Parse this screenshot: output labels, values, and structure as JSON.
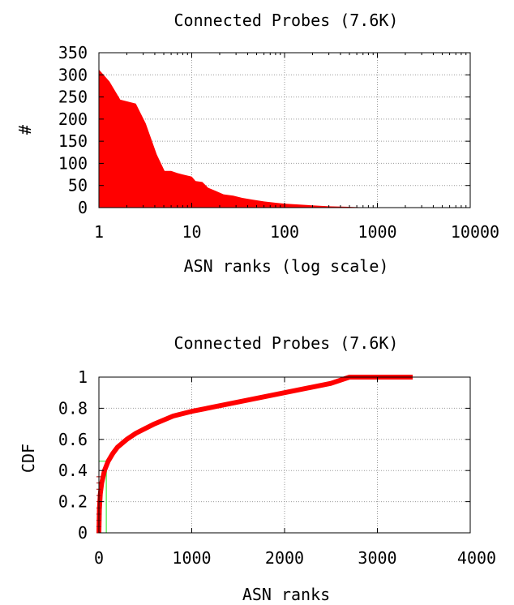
{
  "chart_data": [
    {
      "type": "area",
      "title": "Connected Probes (7.6K)",
      "xlabel": "ASN ranks (log scale)",
      "ylabel": "#",
      "x_scale": "log",
      "xlim": [
        1,
        10000
      ],
      "ylim": [
        0,
        350
      ],
      "x_ticks": [
        1,
        10,
        100,
        1000,
        10000
      ],
      "x_tick_labels": [
        "1",
        "10",
        "100",
        "1000",
        "10000"
      ],
      "y_ticks": [
        0,
        50,
        100,
        150,
        200,
        250,
        300,
        350
      ],
      "y_tick_labels": [
        "0",
        "50",
        "100",
        "150",
        "200",
        "250",
        "300",
        "350"
      ],
      "grid": true,
      "fill_color": "#ff0000",
      "series": [
        {
          "x": [
            1,
            1.3,
            1.7,
            2.5,
            3.2,
            4.2,
            5.1,
            6,
            7,
            8,
            10,
            11,
            13,
            15,
            18,
            22,
            28,
            35,
            45,
            60,
            80,
            100,
            140,
            200,
            300,
            450,
            650,
            800
          ],
          "y": [
            312,
            285,
            244,
            235,
            190,
            120,
            83,
            83,
            78,
            75,
            70,
            60,
            58,
            45,
            38,
            30,
            27,
            22,
            18,
            14,
            11,
            9,
            7,
            5,
            3,
            2,
            1,
            0
          ]
        }
      ]
    },
    {
      "type": "line",
      "title": "Connected Probes (7.6K)",
      "xlabel": "ASN ranks",
      "ylabel": "CDF",
      "xlim": [
        0,
        4000
      ],
      "ylim": [
        0,
        1
      ],
      "x_ticks": [
        0,
        1000,
        2000,
        3000,
        4000
      ],
      "x_tick_labels": [
        "0",
        "1000",
        "2000",
        "3000",
        "4000"
      ],
      "y_ticks": [
        0,
        0.2,
        0.4,
        0.6,
        0.8,
        1
      ],
      "y_tick_labels": [
        "0",
        "0.2",
        "0.4",
        "0.6",
        "0.8",
        "1"
      ],
      "grid": true,
      "line_color": "#ff0000",
      "marker_line_color": "#66ee66",
      "series": [
        {
          "x": [
            0,
            5,
            15,
            30,
            60,
            100,
            150,
            200,
            300,
            400,
            500,
            600,
            800,
            1000,
            1500,
            2000,
            2500,
            2700,
            3000,
            3380
          ],
          "y": [
            0,
            0.15,
            0.25,
            0.32,
            0.4,
            0.46,
            0.51,
            0.55,
            0.6,
            0.64,
            0.67,
            0.7,
            0.75,
            0.78,
            0.84,
            0.9,
            0.96,
            1.0,
            1.0,
            1.0
          ]
        }
      ],
      "marker": {
        "x": 80,
        "y": 0.46
      }
    }
  ]
}
